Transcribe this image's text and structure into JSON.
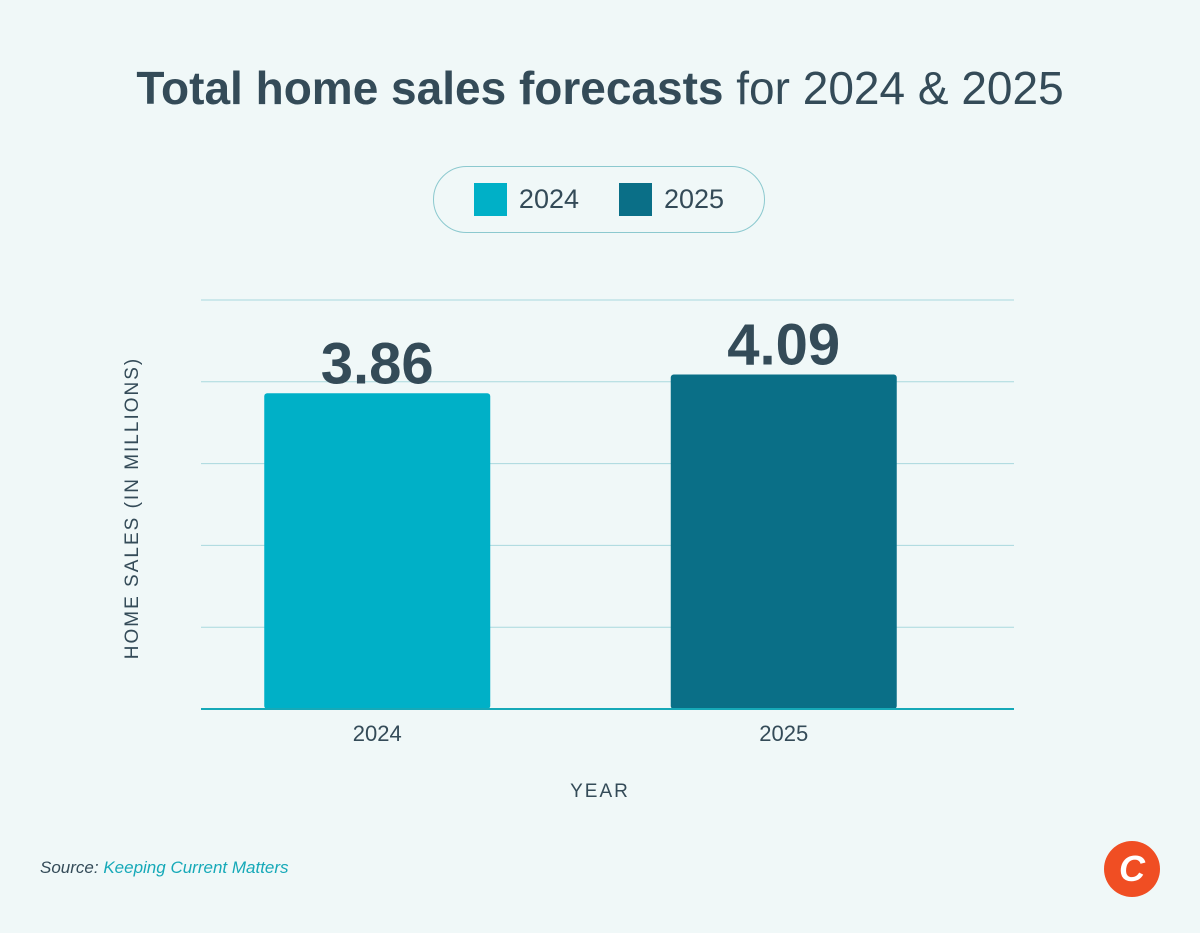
{
  "title": {
    "bold": "Total home sales forecasts",
    "rest": "for 2024 & 2025"
  },
  "legend": [
    {
      "label": "2024",
      "color": "#00b0c7"
    },
    {
      "label": "2025",
      "color": "#0a6f87"
    }
  ],
  "chart_data": {
    "type": "bar",
    "categories": [
      "2024",
      "2025"
    ],
    "values": [
      3.86,
      4.09
    ],
    "data_labels": [
      "3.86",
      "4.09"
    ],
    "colors": [
      "#00b0c7",
      "#0a6f87"
    ],
    "xlabel": "YEAR",
    "ylabel": "HOME SALES (IN MILLIONS)",
    "ylim": [
      0,
      5
    ],
    "grid": true,
    "legend_position": "top-center"
  },
  "source": {
    "prefix": "Source:",
    "name": "Keeping Current Matters"
  },
  "logo": {
    "letter": "C",
    "color": "#f04e23"
  }
}
